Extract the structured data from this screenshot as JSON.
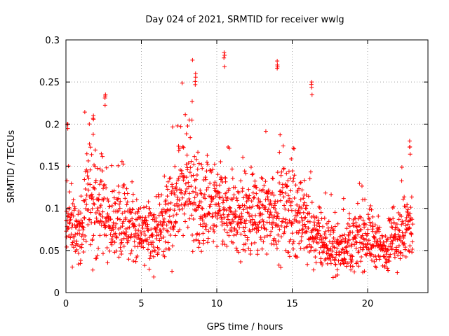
{
  "chart_data": {
    "type": "scatter",
    "title": "Day 024 of 2021, SRMTID for receiver wwlg",
    "xlabel": "GPS time / hours",
    "ylabel": "SRMTID / TECUs",
    "xlim": [
      0,
      24
    ],
    "ylim": [
      0,
      0.3
    ],
    "xticks": [
      0,
      5,
      10,
      15,
      20
    ],
    "xtick_labels": [
      "0",
      "5",
      "10",
      "15",
      "20"
    ],
    "yticks": [
      0,
      0.05,
      0.1,
      0.15,
      0.2,
      0.25,
      0.3
    ],
    "ytick_labels": [
      "0",
      "0.05",
      "0.1",
      "0.15",
      "0.2",
      "0.25",
      "0.3"
    ],
    "grid": true,
    "marker": "+",
    "marker_color": "#ff0000",
    "series_summary": {
      "name": "SRMTID",
      "x_range": [
        0,
        23
      ],
      "approx_mean_profile": [
        [
          0.0,
          0.08
        ],
        [
          1.0,
          0.08
        ],
        [
          1.5,
          0.12
        ],
        [
          2.0,
          0.11
        ],
        [
          3.0,
          0.08
        ],
        [
          4.0,
          0.09
        ],
        [
          5.0,
          0.07
        ],
        [
          6.0,
          0.07
        ],
        [
          7.0,
          0.1
        ],
        [
          8.0,
          0.13
        ],
        [
          9.0,
          0.1
        ],
        [
          10.0,
          0.1
        ],
        [
          11.0,
          0.09
        ],
        [
          12.0,
          0.09
        ],
        [
          13.0,
          0.09
        ],
        [
          14.0,
          0.1
        ],
        [
          15.0,
          0.1
        ],
        [
          16.0,
          0.08
        ],
        [
          17.0,
          0.06
        ],
        [
          18.0,
          0.05
        ],
        [
          19.0,
          0.06
        ],
        [
          20.0,
          0.07
        ],
        [
          21.0,
          0.05
        ],
        [
          22.0,
          0.07
        ],
        [
          23.0,
          0.08
        ]
      ],
      "notable_peaks": [
        {
          "x": 0.1,
          "y": 0.2
        },
        {
          "x": 1.8,
          "y": 0.21
        },
        {
          "x": 2.6,
          "y": 0.235
        },
        {
          "x": 8.6,
          "y": 0.26
        },
        {
          "x": 10.5,
          "y": 0.285
        },
        {
          "x": 14.0,
          "y": 0.275
        },
        {
          "x": 16.3,
          "y": 0.25
        },
        {
          "x": 22.8,
          "y": 0.18
        }
      ]
    }
  }
}
